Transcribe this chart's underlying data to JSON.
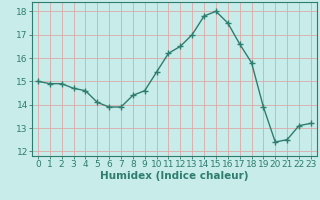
{
  "x": [
    0,
    1,
    2,
    3,
    4,
    5,
    6,
    7,
    8,
    9,
    10,
    11,
    12,
    13,
    14,
    15,
    16,
    17,
    18,
    19,
    20,
    21,
    22,
    23
  ],
  "y": [
    15.0,
    14.9,
    14.9,
    14.7,
    14.6,
    14.1,
    13.9,
    13.9,
    14.4,
    14.6,
    15.4,
    16.2,
    16.5,
    17.0,
    17.8,
    18.0,
    17.5,
    16.6,
    15.8,
    13.9,
    12.4,
    12.5,
    13.1,
    13.2
  ],
  "line_color": "#2e7d6e",
  "marker": "+",
  "marker_size": 4,
  "marker_linewidth": 1.0,
  "bg_color": "#c8ecea",
  "grid_color": "#dba8a8",
  "xlabel": "Humidex (Indice chaleur)",
  "xlabel_fontsize": 7.5,
  "tick_fontsize": 6.5,
  "ylim": [
    11.8,
    18.4
  ],
  "xlim": [
    -0.5,
    23.5
  ],
  "yticks": [
    12,
    13,
    14,
    15,
    16,
    17,
    18
  ],
  "xticks": [
    0,
    1,
    2,
    3,
    4,
    5,
    6,
    7,
    8,
    9,
    10,
    11,
    12,
    13,
    14,
    15,
    16,
    17,
    18,
    19,
    20,
    21,
    22,
    23
  ]
}
